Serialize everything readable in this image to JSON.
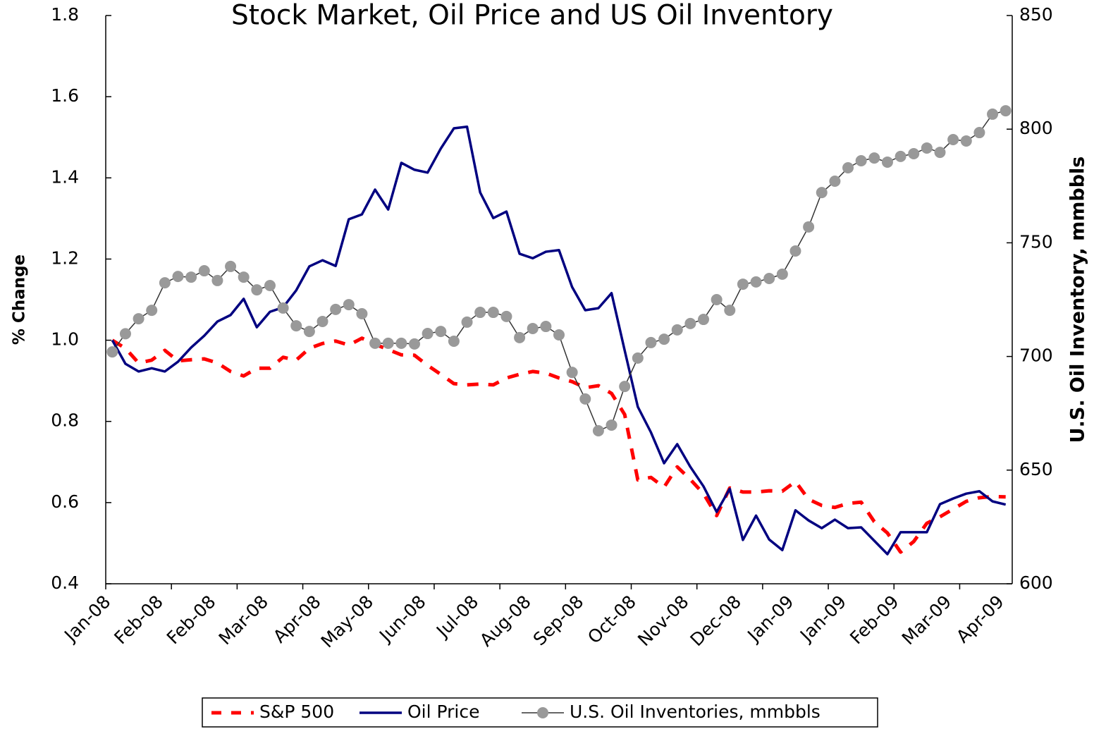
{
  "chart_data": {
    "type": "line",
    "title": "Stock Market, Oil Price and US Oil Inventory",
    "ylabel": "% Change",
    "y2label": "U.S. Oil Inventory, mmbbls",
    "categories": [
      "Jan-08",
      null,
      null,
      null,
      "Feb-08",
      null,
      null,
      null,
      "Feb-08",
      null,
      null,
      null,
      "Mar-08",
      null,
      null,
      null,
      "Apr-08",
      null,
      null,
      null,
      "May-08",
      null,
      null,
      null,
      "Jun-08",
      null,
      null,
      null,
      "Jul-08",
      null,
      null,
      null,
      "Aug-08",
      null,
      null,
      null,
      "Sep-08",
      null,
      null,
      null,
      "Oct-08",
      null,
      null,
      null,
      "Nov-08",
      null,
      null,
      null,
      "Dec-08",
      null,
      null,
      null,
      "Jan-09",
      null,
      null,
      null,
      "Jan-09",
      null,
      null,
      null,
      "Feb-09",
      null,
      null,
      null,
      "Mar-09",
      null,
      null,
      null,
      "Apr-09"
    ],
    "ylim": [
      0.4,
      1.8
    ],
    "yticks": [
      0.4,
      0.6,
      0.8,
      {
        "value": 1,
        "label": "1.0"
      },
      1.2,
      1.4,
      1.6,
      1.8
    ],
    "y2lim": [
      600,
      850
    ],
    "y2ticks": [
      600,
      650,
      700,
      750,
      800,
      850
    ],
    "legend": "bottom",
    "series": [
      {
        "name": "S&P 500",
        "color": "#ff0000",
        "line_style": "dashed",
        "values": [
          1.0,
          0.98,
          0.944,
          0.951,
          0.975,
          0.949,
          0.952,
          0.954,
          0.944,
          0.923,
          0.912,
          0.931,
          0.931,
          0.958,
          0.951,
          0.98,
          0.992,
          0.998,
          0.988,
          1.005,
          0.99,
          0.977,
          0.964,
          0.963,
          0.938,
          0.916,
          0.893,
          0.89,
          0.892,
          0.89,
          0.907,
          0.916,
          0.923,
          0.919,
          0.907,
          0.898,
          0.883,
          0.888,
          0.869,
          0.817,
          0.656,
          0.662,
          0.638,
          0.688,
          0.657,
          0.622,
          0.568,
          0.636,
          0.626,
          0.626,
          0.629,
          0.628,
          0.652,
          0.608,
          0.593,
          0.588,
          0.598,
          0.601,
          0.553,
          0.525,
          0.478,
          0.504,
          0.549,
          0.565,
          0.584,
          0.603,
          0.612,
          0.615,
          0.614
        ]
      },
      {
        "name": "Oil Price",
        "color": "#000080",
        "line_style": "solid",
        "values": [
          1.0,
          0.942,
          0.923,
          0.931,
          0.923,
          0.947,
          0.982,
          1.011,
          1.046,
          1.062,
          1.102,
          1.032,
          1.07,
          1.081,
          1.123,
          1.182,
          1.197,
          1.183,
          1.298,
          1.31,
          1.371,
          1.322,
          1.437,
          1.42,
          1.413,
          1.472,
          1.522,
          1.526,
          1.364,
          1.301,
          1.317,
          1.213,
          1.202,
          1.218,
          1.222,
          1.131,
          1.074,
          1.079,
          1.116,
          0.975,
          0.836,
          0.773,
          0.697,
          0.744,
          0.688,
          0.64,
          0.577,
          0.634,
          0.508,
          0.568,
          0.509,
          0.483,
          0.581,
          0.556,
          0.537,
          0.558,
          0.537,
          0.539,
          0.506,
          0.473,
          0.527,
          0.527,
          0.527,
          0.596,
          0.61,
          0.622,
          0.628,
          0.603,
          0.595
        ]
      },
      {
        "name": "U.S. Oil Inventories, mmbbls",
        "color": "#999999",
        "line_style": "solid",
        "marker": "circle",
        "axis": "y2",
        "values": [
          702,
          710,
          716.6,
          720.3,
          732.4,
          735.2,
          734.9,
          737.7,
          733.4,
          739.6,
          734.9,
          729.3,
          731.2,
          721.3,
          713.5,
          711,
          715.4,
          720.7,
          722.8,
          718.8,
          705.8,
          705.8,
          705.8,
          705.5,
          710.1,
          711,
          706.7,
          715.1,
          719.4,
          719.4,
          717.6,
          708.3,
          712.3,
          713.2,
          709.5,
          693,
          681.3,
          667.3,
          669.8,
          686.8,
          699.3,
          706.1,
          707.6,
          711.7,
          714.5,
          716.3,
          725,
          720.3,
          731.8,
          732.8,
          734.3,
          736.2,
          746.4,
          757,
          772.1,
          777.1,
          783,
          786.1,
          787.3,
          785.5,
          788,
          789.2,
          791.7,
          789.8,
          795.4,
          794.8,
          798.5,
          806.6,
          808.1
        ]
      }
    ]
  }
}
